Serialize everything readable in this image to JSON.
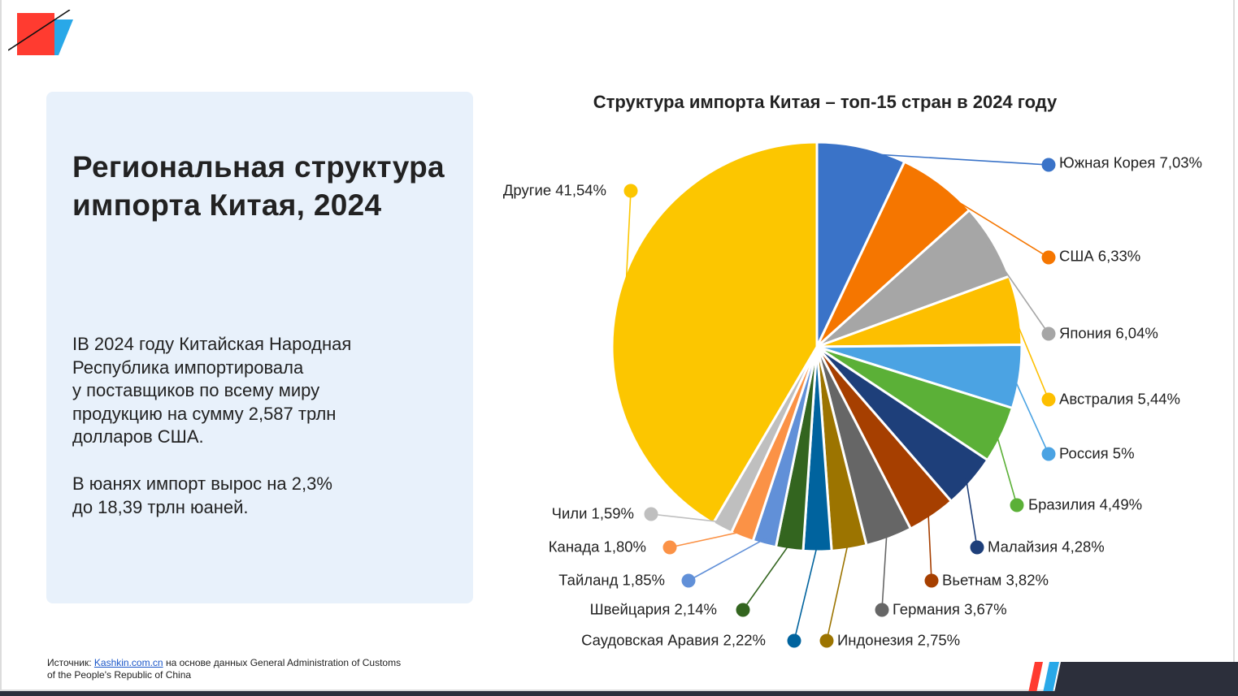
{
  "panel": {
    "title": "Региональная структура импорта Китая, 2024",
    "paragraph1": "IВ 2024 году Китайская Народная\nРеспублика импортировала\nу поставщиков по всему миру\nпродукцию на сумму 2,587 трлн\nдолларов США.",
    "paragraph2": "В юанях импорт вырос на 2,3%\nдо 18,39 трлн юаней."
  },
  "source": {
    "prefix": "Источник: ",
    "link": "Kashkin.com.cn",
    "suffix": " на основе данных General Administration of Customs of the People's Republic of China"
  },
  "colors": {
    "logo_red": "#ff3b30",
    "logo_blue": "#29a8e8",
    "panel_bg": "#e8f1fb",
    "footer_dark": "#2c2f3b"
  },
  "chart_data": {
    "type": "pie",
    "title": "Структура импорта Китая – топ-15 стран в 2024 году",
    "slices": [
      {
        "label": "Южная Корея 7,03%",
        "value": 7.03,
        "color": "#3a73c8"
      },
      {
        "label": "США 6,33%",
        "value": 6.33,
        "color": "#f57600"
      },
      {
        "label": "Япония 6,04%",
        "value": 6.04,
        "color": "#a6a6a6"
      },
      {
        "label": "Австралия 5,44%",
        "value": 5.44,
        "color": "#fdbf00"
      },
      {
        "label": "Россия 5%",
        "value": 5.0,
        "color": "#4ba3e3"
      },
      {
        "label": "Бразилия 4,49%",
        "value": 4.49,
        "color": "#5bb037"
      },
      {
        "label": "Малайзия 4,28%",
        "value": 4.28,
        "color": "#1e3f7a"
      },
      {
        "label": "Вьетнам 3,82%",
        "value": 3.82,
        "color": "#a63f00"
      },
      {
        "label": "Германия 3,67%",
        "value": 3.67,
        "color": "#666666"
      },
      {
        "label": "Индонезия 2,75%",
        "value": 2.75,
        "color": "#9c7400"
      },
      {
        "label": "Саудовская Аравия 2,22%",
        "value": 2.22,
        "color": "#00639e"
      },
      {
        "label": "Швейцария 2,14%",
        "value": 2.14,
        "color": "#33651f"
      },
      {
        "label": "Тайланд 1,85%",
        "value": 1.85,
        "color": "#6190d8"
      },
      {
        "label": "Канада 1,80%",
        "value": 1.8,
        "color": "#fb9246"
      },
      {
        "label": "Чили 1,59%",
        "value": 1.59,
        "color": "#bfbfbf"
      },
      {
        "label": "Другие 41,54%",
        "value": 41.54,
        "color": "#fcc600"
      }
    ]
  }
}
